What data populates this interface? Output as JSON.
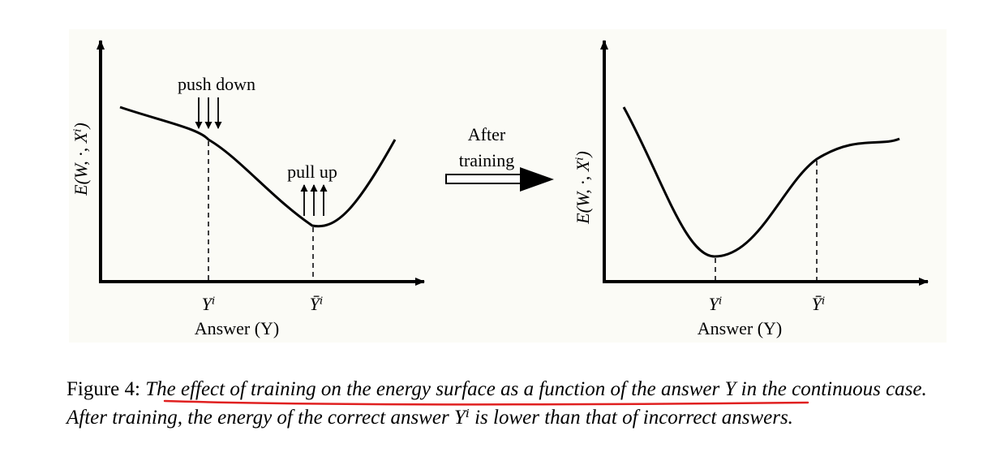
{
  "figure": {
    "left_plot": {
      "y_axis_label": "E(W, ·, Xⁱ)",
      "x_tick_1": "Yⁱ",
      "x_tick_2": "Ȳⁱ",
      "x_axis_label": "Answer (Y)",
      "annotation_push": "push down",
      "annotation_pull": "pull up"
    },
    "arrow": {
      "line1": "After",
      "line2": "training"
    },
    "right_plot": {
      "y_axis_label": "E(W, ·, Xⁱ)",
      "x_tick_1": "Yⁱ",
      "x_tick_2": "Ȳⁱ",
      "x_axis_label": "Answer (Y)"
    }
  },
  "caption": {
    "label": "Figure 4:",
    "text_part1": "The effect of training on the energy surface as a function of the answer",
    "symbol1": "Y",
    "text_part2": "in the continuous case. After training, the energy of the correct answer",
    "symbol2": "Yⁱ",
    "text_part3": "is lower than that of incorrect answers."
  },
  "colors": {
    "panel_background": "#fbfbf6",
    "underline": "#e02020"
  }
}
